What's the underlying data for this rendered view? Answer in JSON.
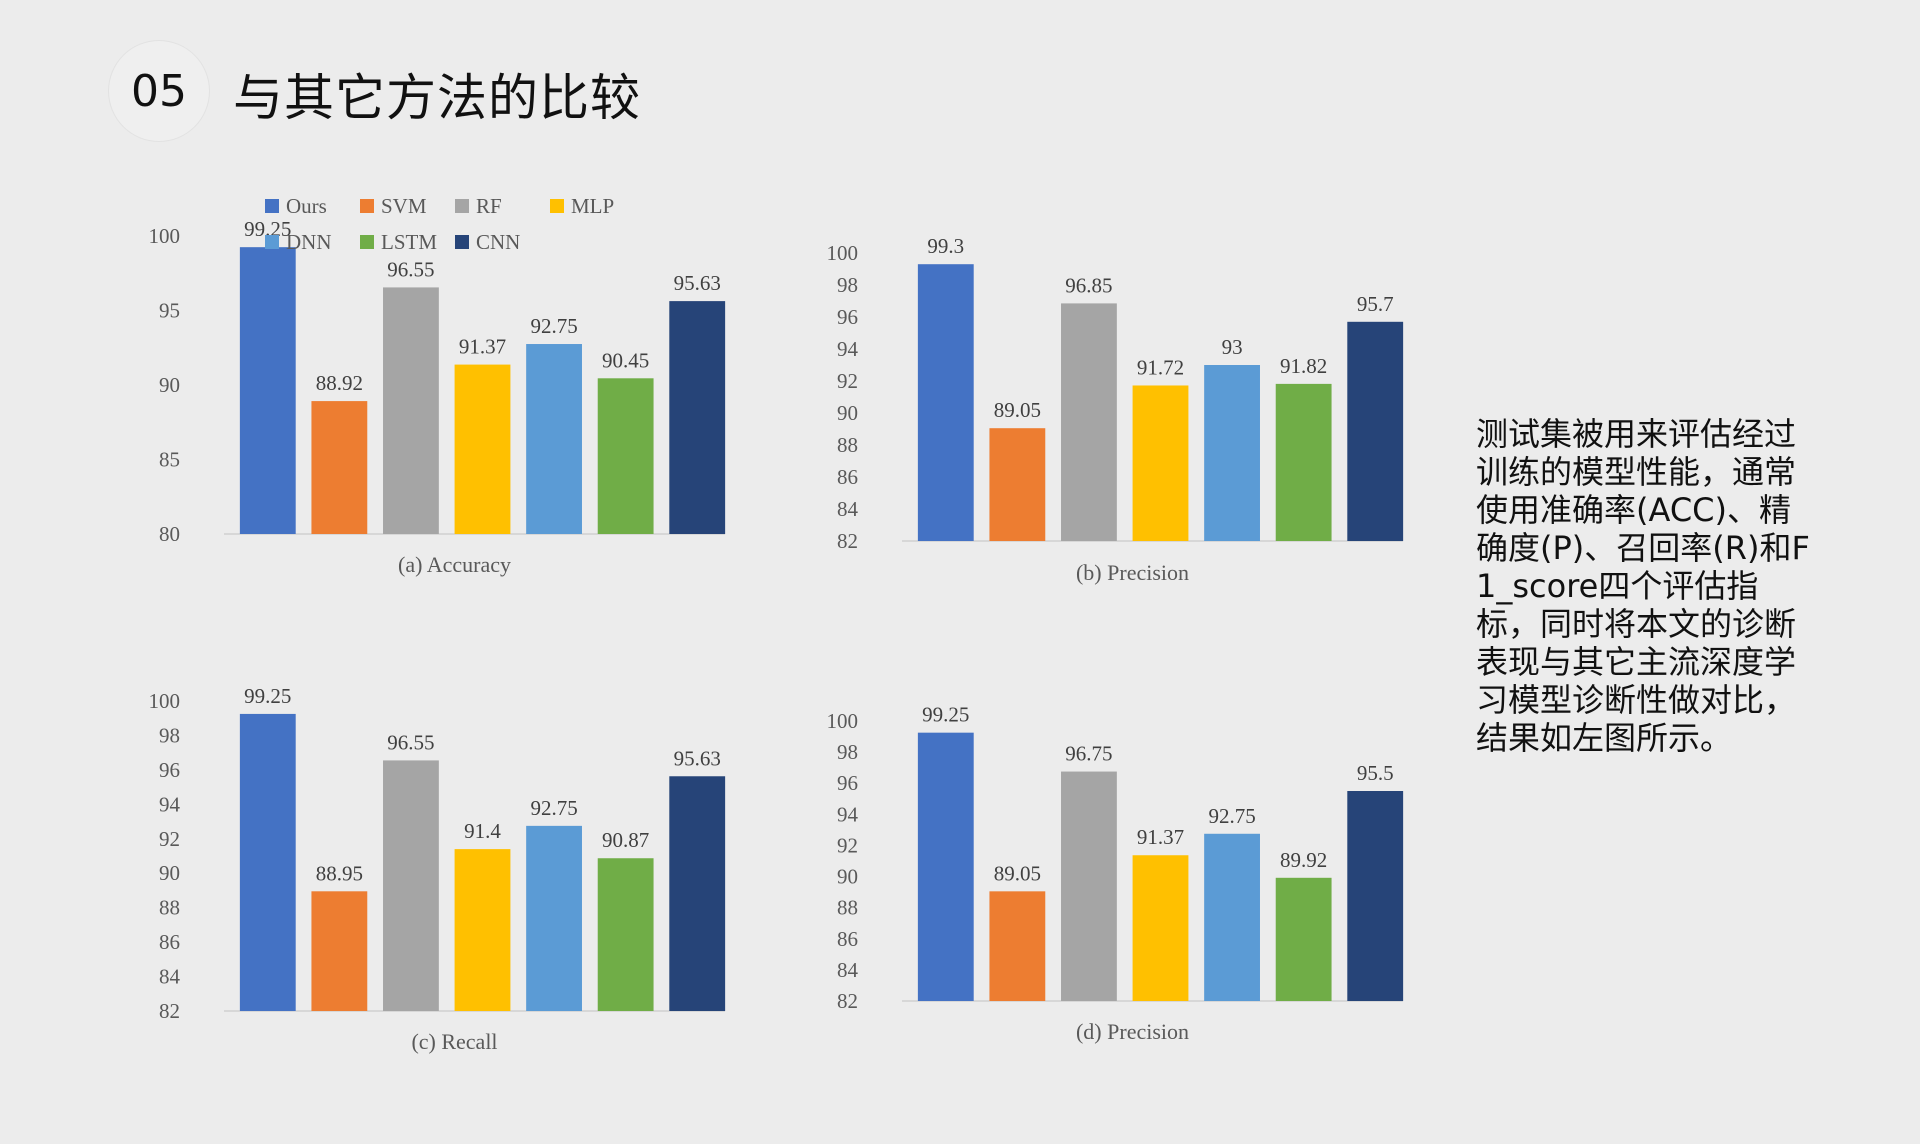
{
  "slide": {
    "number": "05",
    "title": "与其它方法的比较",
    "body_text": "测试集被用来评估经过训练的模型性能，通常使用准确率(ACC)、精确度(P)、召回率(R)和F1_score四个评估指标，同时将本文的诊断表现与其它主流深度学习模型诊断性做对比，结果如左图所示。"
  },
  "colors": {
    "Ours": "#4472c4",
    "SVM": "#ed7d31",
    "RF": "#a5a5a5",
    "MLP": "#ffc000",
    "DNN": "#5b9bd5",
    "LSTM": "#70ad47",
    "CNN": "#264478"
  },
  "legend": [
    "Ours",
    "SVM",
    "RF",
    "MLP",
    "DNN",
    "LSTM",
    "CNN"
  ],
  "chart_data": [
    {
      "type": "bar",
      "caption": "(a)  Accuracy",
      "categories": [
        "Ours",
        "SVM",
        "RF",
        "MLP",
        "DNN",
        "LSTM",
        "CNN"
      ],
      "values": [
        99.25,
        88.92,
        96.55,
        91.37,
        92.75,
        90.45,
        95.63
      ],
      "value_labels": [
        "99.25",
        "88.92",
        "96.55",
        "91.37",
        "92.75",
        "90.45",
        "95.63"
      ],
      "ylim": [
        80,
        100
      ],
      "yticks": [
        "80",
        "85",
        "90",
        "95",
        "100"
      ]
    },
    {
      "type": "bar",
      "caption": "(b)  Precision",
      "categories": [
        "Ours",
        "SVM",
        "RF",
        "MLP",
        "DNN",
        "LSTM",
        "CNN"
      ],
      "values": [
        99.3,
        89.05,
        96.85,
        91.72,
        93,
        91.82,
        95.7
      ],
      "value_labels": [
        "99.3",
        "89.05",
        "96.85",
        "91.72",
        "93",
        "91.82",
        "95.7"
      ],
      "ylim": [
        82,
        100
      ],
      "yticks": [
        "82",
        "84",
        "86",
        "88",
        "90",
        "92",
        "94",
        "96",
        "98",
        "100"
      ]
    },
    {
      "type": "bar",
      "caption": "(c)  Recall",
      "categories": [
        "Ours",
        "SVM",
        "RF",
        "MLP",
        "DNN",
        "LSTM",
        "CNN"
      ],
      "values": [
        99.25,
        88.95,
        96.55,
        91.4,
        92.75,
        90.87,
        95.63
      ],
      "value_labels": [
        "99.25",
        "88.95",
        "96.55",
        "91.4",
        "92.75",
        "90.87",
        "95.63"
      ],
      "ylim": [
        82,
        100
      ],
      "yticks": [
        "82",
        "84",
        "86",
        "88",
        "90",
        "92",
        "94",
        "96",
        "98",
        "100"
      ]
    },
    {
      "type": "bar",
      "caption": "(d)  Precision",
      "categories": [
        "Ours",
        "SVM",
        "RF",
        "MLP",
        "DNN",
        "LSTM",
        "CNN"
      ],
      "values": [
        99.25,
        89.05,
        96.75,
        91.37,
        92.75,
        89.92,
        95.5
      ],
      "value_labels": [
        "99.25",
        "89.05",
        "96.75",
        "91.37",
        "92.75",
        "89.92",
        "95.5"
      ],
      "ylim": [
        82,
        100
      ],
      "yticks": [
        "82",
        "84",
        "86",
        "88",
        "90",
        "92",
        "94",
        "96",
        "98",
        "100"
      ]
    }
  ]
}
